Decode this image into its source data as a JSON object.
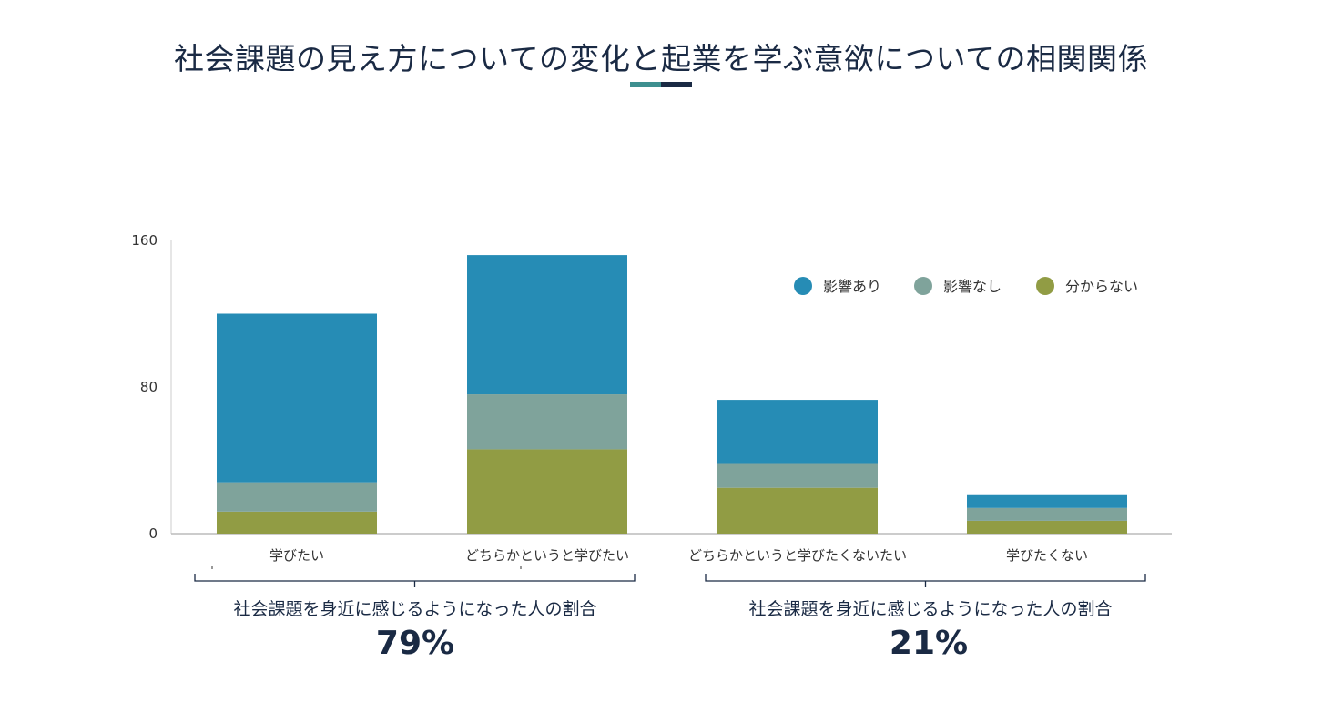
{
  "title": "社会課題の見え方についての変化と起業を学ぶ意欲についての相関関係",
  "colors": {
    "series1": "#268cb5",
    "series2": "#7fa39b",
    "series3": "#919c44",
    "accent_teal": "#3d8f8f",
    "accent_navy": "#1a2a44"
  },
  "chart_data": {
    "type": "bar",
    "stacked": true,
    "categories": [
      "学びたい",
      "どちらかというと学びたい",
      "どちらかというと学びたくないたい",
      "学びたくない"
    ],
    "series": [
      {
        "name": "分からない",
        "values": [
          12,
          46,
          25,
          7
        ]
      },
      {
        "name": "影響なし",
        "values": [
          16,
          30,
          13,
          7
        ]
      },
      {
        "name": "影響あり",
        "values": [
          92,
          76,
          35,
          7
        ]
      }
    ],
    "legend_order": [
      "影響あり",
      "影響なし",
      "分からない"
    ],
    "ylim": [
      0,
      160
    ],
    "yticks": [
      0,
      80,
      160
    ],
    "legend_position": "top-right"
  },
  "groups": [
    {
      "label": "社会課題を身近に感じるようになった人の割合",
      "percent": "79%"
    },
    {
      "label": "社会課題を身近に感じるようになった人の割合",
      "percent": "21%"
    }
  ]
}
